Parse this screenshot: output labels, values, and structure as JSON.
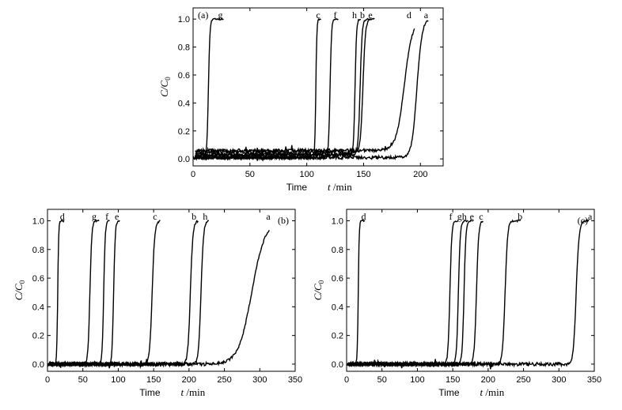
{
  "chart_data": [
    {
      "type": "line",
      "panel_label": "(a)",
      "xlabel_prefix": "Time",
      "xlabel_var": "t",
      "xlabel_unit": " /min",
      "ylabel_main": "C/C",
      "ylabel_sub": "0",
      "xlim": [
        0,
        220
      ],
      "ylim": [
        -0.05,
        1.08
      ],
      "xticks": [
        0,
        50,
        100,
        150,
        200
      ],
      "yticks": [
        0.0,
        0.2,
        0.4,
        0.6,
        0.8,
        1.0
      ],
      "ytick_labels": [
        "0.0",
        "0.2",
        "0.4",
        "0.6",
        "0.8",
        "1.0"
      ],
      "series": [
        {
          "name": "g",
          "breakthrough": 12,
          "rise": 3,
          "end": 27,
          "pre_level": 0.01,
          "label_x": 24
        },
        {
          "name": "c",
          "breakthrough": 107,
          "rise": 2,
          "end": 113,
          "pre_level": 0.01,
          "label_x": 110
        },
        {
          "name": "f",
          "breakthrough": 119,
          "rise": 3,
          "end": 128,
          "pre_level": 0.01,
          "label_x": 125
        },
        {
          "name": "h",
          "breakthrough": 141,
          "rise": 3,
          "end": 148,
          "pre_level": 0.03,
          "label_x": 142
        },
        {
          "name": "b",
          "breakthrough": 145,
          "rise": 4,
          "end": 157,
          "pre_level": 0.03,
          "label_x": 149
        },
        {
          "name": "e",
          "breakthrough": 147,
          "rise": 5,
          "end": 160,
          "pre_level": 0.05,
          "label_x": 156
        },
        {
          "name": "d",
          "breakthrough": 178,
          "rise": 16,
          "end": 195,
          "pre_level": 0.06,
          "label_x": 190
        },
        {
          "name": "a",
          "breakthrough": 192,
          "rise": 10,
          "end": 207,
          "pre_level": 0.01,
          "label_x": 205
        }
      ]
    },
    {
      "type": "line",
      "panel_label": "(b)",
      "xlabel_prefix": "Time",
      "xlabel_var": "t",
      "xlabel_unit": " /min",
      "ylabel_main": "C/C",
      "ylabel_sub": "0",
      "xlim": [
        0,
        350
      ],
      "ylim": [
        -0.05,
        1.08
      ],
      "xticks": [
        0,
        50,
        100,
        150,
        200,
        250,
        300,
        350
      ],
      "yticks": [
        0.0,
        0.2,
        0.4,
        0.6,
        0.8,
        1.0
      ],
      "ytick_labels": [
        "0.0",
        "0.2",
        "0.4",
        "0.6",
        "0.8",
        "1.0"
      ],
      "series": [
        {
          "name": "d",
          "breakthrough": 13,
          "rise": 3,
          "end": 24,
          "pre_level": 0.0,
          "label_x": 21
        },
        {
          "name": "g",
          "breakthrough": 57,
          "rise": 6,
          "end": 73,
          "pre_level": 0.0,
          "label_x": 66
        },
        {
          "name": "f",
          "breakthrough": 77,
          "rise": 5,
          "end": 88,
          "pre_level": 0.0,
          "label_x": 84
        },
        {
          "name": "e",
          "breakthrough": 91,
          "rise": 5,
          "end": 102,
          "pre_level": 0.0,
          "label_x": 98
        },
        {
          "name": "c",
          "breakthrough": 144,
          "rise": 8,
          "end": 160,
          "pre_level": 0.0,
          "label_x": 152
        },
        {
          "name": "b",
          "breakthrough": 198,
          "rise": 8,
          "end": 213,
          "pre_level": 0.0,
          "label_x": 207
        },
        {
          "name": "h",
          "breakthrough": 213,
          "rise": 8,
          "end": 228,
          "pre_level": 0.0,
          "label_x": 223
        },
        {
          "name": "a",
          "breakthrough": 268,
          "rise": 42,
          "end": 314,
          "pre_level": 0.0,
          "label_x": 312
        }
      ]
    },
    {
      "type": "line",
      "panel_label": "(c)",
      "xlabel_prefix": "Time",
      "xlabel_var": "t",
      "xlabel_unit": " /min",
      "ylabel_main": "C/C",
      "ylabel_sub": "0",
      "xlim": [
        0,
        350
      ],
      "ylim": [
        -0.05,
        1.08
      ],
      "xticks": [
        0,
        50,
        100,
        150,
        200,
        250,
        300,
        350
      ],
      "yticks": [
        0.0,
        0.2,
        0.4,
        0.6,
        0.8,
        1.0
      ],
      "ytick_labels": [
        "0.0",
        "0.2",
        "0.4",
        "0.6",
        "0.8",
        "1.0"
      ],
      "series": [
        {
          "name": "d",
          "breakthrough": 15,
          "rise": 3,
          "end": 26,
          "pre_level": 0.0,
          "label_x": 24
        },
        {
          "name": "f",
          "breakthrough": 143,
          "rise": 6,
          "end": 158,
          "pre_level": 0.0,
          "label_x": 147
        },
        {
          "name": "gh",
          "breakthrough": 155,
          "rise": 6,
          "end": 172,
          "pre_level": 0.0,
          "label_x": 163
        },
        {
          "name": "e",
          "breakthrough": 163,
          "rise": 6,
          "end": 180,
          "pre_level": 0.0,
          "label_x": 177
        },
        {
          "name": "c",
          "breakthrough": 180,
          "rise": 7,
          "end": 193,
          "pre_level": 0.0,
          "label_x": 190
        },
        {
          "name": "b",
          "breakthrough": 220,
          "rise": 8,
          "end": 247,
          "pre_level": 0.0,
          "label_x": 245
        },
        {
          "name": "a",
          "breakthrough": 320,
          "rise": 9,
          "end": 343,
          "pre_level": 0.0,
          "label_x": 344
        }
      ]
    }
  ]
}
